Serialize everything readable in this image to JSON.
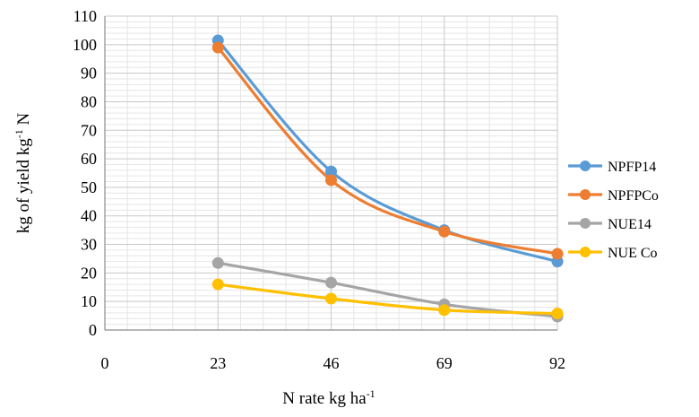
{
  "chart_data": {
    "type": "line",
    "title": "",
    "xlabel": "N rate kg ha",
    "xlabel_sup": "-1",
    "ylabel_parts": [
      "kg of yield kg",
      "-1",
      " N"
    ],
    "x_ticks": [
      0,
      23,
      46,
      69,
      92
    ],
    "y_ticks": [
      0,
      10,
      20,
      30,
      40,
      50,
      60,
      70,
      80,
      90,
      100,
      110
    ],
    "xlim": [
      0,
      92
    ],
    "ylim": [
      0,
      110
    ],
    "grid": "major and minor, both axes",
    "smooth": true,
    "legend_position": "right",
    "x": [
      23,
      46,
      69,
      92
    ],
    "series": [
      {
        "name": "NPFP14",
        "color": "#5B9BD5",
        "values": [
          101.5,
          55.6,
          35.0,
          24.0
        ]
      },
      {
        "name": "NPFPCo",
        "color": "#ED7D31",
        "values": [
          99.0,
          52.5,
          34.5,
          26.7
        ]
      },
      {
        "name": "NUE14",
        "color": "#A5A5A5",
        "values": [
          23.5,
          16.6,
          9.0,
          4.7
        ]
      },
      {
        "name": "NUE Co",
        "color": "#FFC000",
        "values": [
          16.0,
          11.0,
          7.0,
          5.8
        ]
      }
    ]
  }
}
